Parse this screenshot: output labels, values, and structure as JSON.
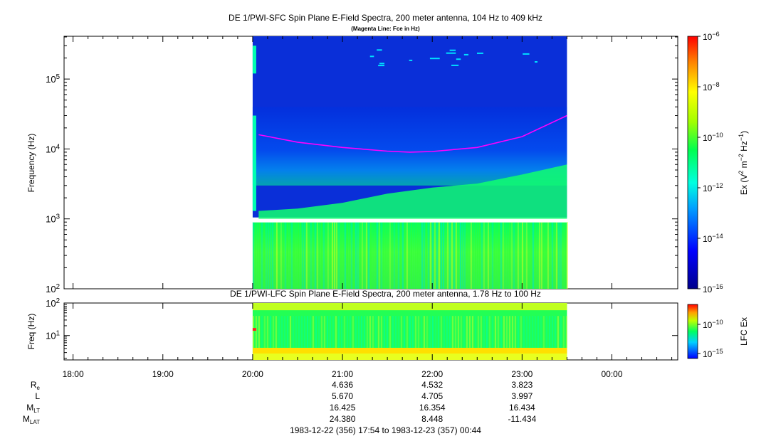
{
  "chart_data": [
    {
      "type": "heatmap",
      "title": "DE 1/PWI-SFC  Spin Plane E-Field Spectra, 200 meter antenna, 104 Hz to 409 kHz",
      "subtitle": "(Magenta Line: Fce in Hz)",
      "ylabel": "Frequency (Hz)",
      "yscale": "log",
      "ylim": [
        100,
        409000
      ],
      "yticks": [
        "10^2",
        "10^3",
        "10^4",
        "10^5"
      ],
      "data_time_range": [
        "20:00",
        "23:30"
      ],
      "colorbar": {
        "label": "Ex (V^2 m^-2 Hz^-1)",
        "scale": "log",
        "range": [
          1e-16,
          1e-06
        ],
        "ticks": [
          "10^-16",
          "10^-14",
          "10^-12",
          "10^-10",
          "10^-8",
          "10^-6"
        ]
      },
      "fce_line": {
        "color": "#ff00ff",
        "x": [
          "20:04",
          "20:30",
          "21:00",
          "21:30",
          "21:45",
          "22:00",
          "22:30",
          "23:00",
          "23:30"
        ],
        "y": [
          16000,
          12500,
          10500,
          9300,
          9000,
          9200,
          10500,
          15000,
          30000
        ]
      }
    },
    {
      "type": "heatmap",
      "title": "DE 1/PWI-LFC  Spin Plane E-Field Spectra, 200 meter antenna, 1.78 Hz to 100 Hz",
      "ylabel": "Freq (Hz)",
      "yscale": "log",
      "ylim": [
        1.78,
        100
      ],
      "yticks": [
        "10^1",
        "10^2"
      ],
      "data_time_range": [
        "20:00",
        "23:30"
      ],
      "colorbar": {
        "label": "LFC Ex",
        "scale": "log",
        "ticks": [
          "10^-15",
          "10^-10"
        ]
      }
    }
  ],
  "xaxis": {
    "range": [
      "17:54",
      "00:44"
    ],
    "ticks": [
      "18:00",
      "19:00",
      "20:00",
      "21:00",
      "22:00",
      "23:00",
      "00:00"
    ]
  },
  "ephemeris": {
    "times": [
      "21:00",
      "22:00",
      "23:00"
    ],
    "rows": [
      {
        "label": "R",
        "sub": "e",
        "values": [
          "4.636",
          "4.532",
          "3.823"
        ]
      },
      {
        "label": "L",
        "sub": "",
        "values": [
          "5.670",
          "4.705",
          "3.997"
        ]
      },
      {
        "label": "M",
        "sub": "LT",
        "values": [
          "16.425",
          "16.354",
          "16.434"
        ]
      },
      {
        "label": "M",
        "sub": "LAT",
        "values": [
          "24.380",
          "8.448",
          "-11.434"
        ]
      }
    ]
  },
  "time_range_text": "1983-12-22 (356) 17:54 to 1983-12-23 (357) 00:44"
}
